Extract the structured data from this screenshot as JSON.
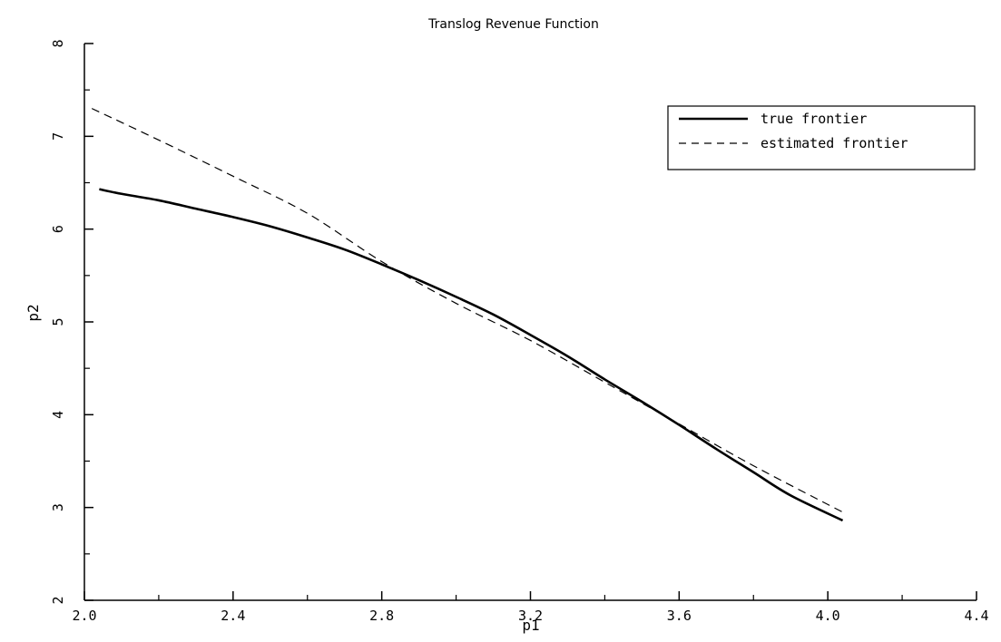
{
  "chart_data": {
    "type": "line",
    "title": "Translog Revenue Function",
    "xlabel": "p1",
    "ylabel": "p2",
    "xlim": [
      2.0,
      4.4
    ],
    "ylim": [
      2,
      8
    ],
    "x_ticks": [
      2.0,
      2.4,
      2.8,
      3.2,
      3.6,
      4.0,
      4.4
    ],
    "x_tick_labels": [
      "2.0",
      "2.4",
      "2.8",
      "3.2",
      "3.6",
      "4.0",
      "4.4"
    ],
    "y_ticks": [
      2,
      3,
      4,
      5,
      6,
      7,
      8
    ],
    "y_tick_labels": [
      "2",
      "3",
      "4",
      "5",
      "6",
      "7",
      "8"
    ],
    "grid": false,
    "legend_position": "top-right",
    "series": [
      {
        "name": "true frontier",
        "style": "solid",
        "color": "#000000",
        "points": [
          [
            2.04,
            6.43
          ],
          [
            2.1,
            6.38
          ],
          [
            2.2,
            6.31
          ],
          [
            2.3,
            6.22
          ],
          [
            2.4,
            6.13
          ],
          [
            2.5,
            6.03
          ],
          [
            2.6,
            5.91
          ],
          [
            2.7,
            5.78
          ],
          [
            2.8,
            5.62
          ],
          [
            2.9,
            5.45
          ],
          [
            3.0,
            5.27
          ],
          [
            3.1,
            5.08
          ],
          [
            3.2,
            4.86
          ],
          [
            3.3,
            4.63
          ],
          [
            3.4,
            4.38
          ],
          [
            3.5,
            4.14
          ],
          [
            3.6,
            3.89
          ],
          [
            3.7,
            3.63
          ],
          [
            3.8,
            3.38
          ],
          [
            3.9,
            3.13
          ],
          [
            4.04,
            2.86
          ]
        ]
      },
      {
        "name": "estimated frontier",
        "style": "dashed",
        "color": "#000000",
        "points": [
          [
            2.02,
            7.3
          ],
          [
            2.2,
            6.96
          ],
          [
            2.4,
            6.57
          ],
          [
            2.6,
            6.17
          ],
          [
            2.8,
            5.65
          ],
          [
            3.0,
            5.2
          ],
          [
            3.2,
            4.8
          ],
          [
            3.4,
            4.35
          ],
          [
            3.6,
            3.9
          ],
          [
            3.8,
            3.45
          ],
          [
            4.04,
            2.95
          ]
        ]
      }
    ]
  }
}
